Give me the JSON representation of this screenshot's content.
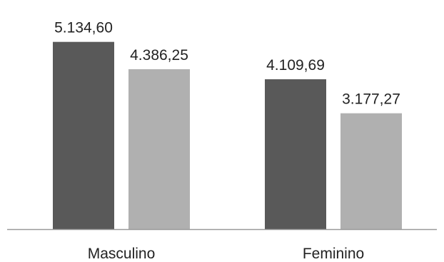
{
  "chart_data": {
    "type": "bar",
    "categories": [
      "Masculino",
      "Feminino"
    ],
    "series": [
      {
        "values": [
          5134.6,
          4109.69
        ],
        "labels": [
          "5.134,60",
          "4.109,69"
        ],
        "color": "#595959"
      },
      {
        "values": [
          4386.25,
          3177.27
        ],
        "labels": [
          "4.386,25",
          "3.177,27"
        ],
        "color": "#b0b0b0"
      }
    ],
    "title": "",
    "xlabel": "",
    "ylabel": "",
    "ylim": [
      0,
      5500
    ],
    "grid": false,
    "legend": "none",
    "axis_color": "#9a9a9a"
  }
}
